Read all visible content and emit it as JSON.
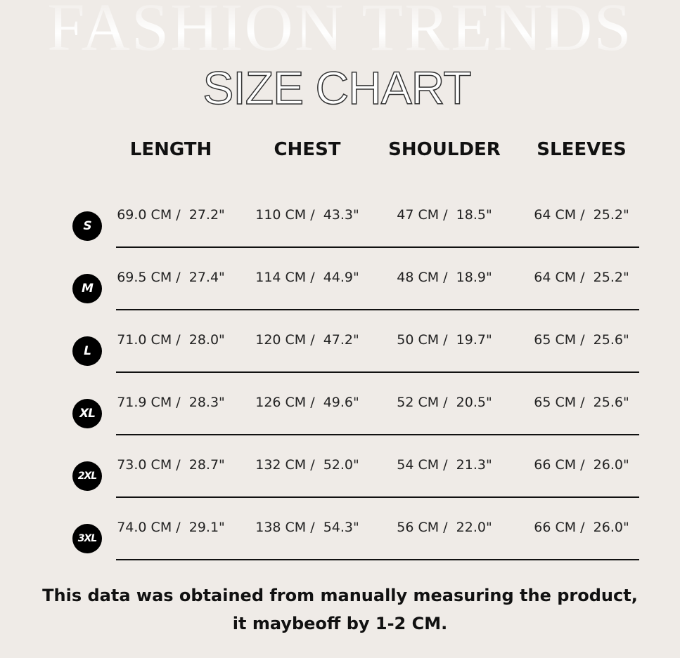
{
  "background_title": "FASHION TRENDS",
  "title": "SIZE CHART",
  "headers": [
    "LENGTH",
    "CHEST",
    "SHOULDER",
    "SLEEVES"
  ],
  "rows": [
    {
      "size": "S",
      "values": [
        "69.0 CM /  27.2\"",
        "110 CM /  43.3\"",
        "47 CM /  18.5\"",
        "64 CM /  25.2\""
      ]
    },
    {
      "size": "M",
      "values": [
        "69.5 CM /  27.4\"",
        "114 CM /  44.9\"",
        "48 CM /  18.9\"",
        "64 CM /  25.2\""
      ]
    },
    {
      "size": "L",
      "values": [
        "71.0 CM /  28.0\"",
        "120 CM /  47.2\"",
        "50 CM /  19.7\"",
        "65 CM /  25.6\""
      ]
    },
    {
      "size": "XL",
      "values": [
        "71.9 CM /  28.3\"",
        "126 CM /  49.6\"",
        "52 CM /  20.5\"",
        "65 CM /  25.6\""
      ]
    },
    {
      "size": "2XL",
      "values": [
        "73.0 CM /  28.7\"",
        "132 CM /  52.0\"",
        "54 CM /  21.3\"",
        "66 CM /  26.0\""
      ]
    },
    {
      "size": "3XL",
      "values": [
        "74.0 CM /  29.1\"",
        "138 CM /  54.3\"",
        "56 CM /  22.0\"",
        "66 CM /  26.0\""
      ]
    }
  ],
  "note": "This data was obtained from manually measuring the product, it maybeoff by 1-2 CM."
}
